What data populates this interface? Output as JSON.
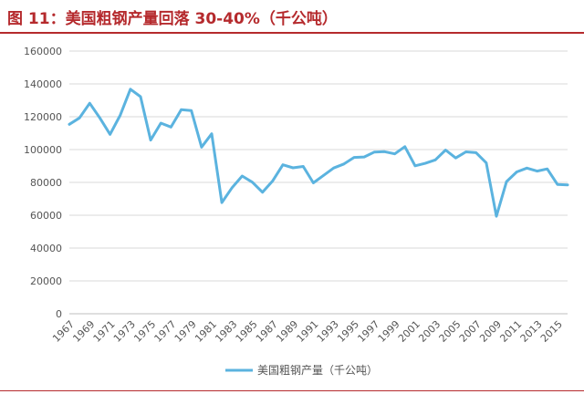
{
  "figure": {
    "title": "图 11：美国粗钢产量回落 30-40%（千公吨）"
  },
  "colors": {
    "line": "#5bb3df",
    "grid": "#d9d9d9",
    "title": "#b52a2d",
    "text": "#555555"
  },
  "chart_data": {
    "type": "line",
    "title": "",
    "xlabel": "",
    "ylabel": "",
    "ylim": [
      0,
      160000
    ],
    "yticks": [
      0,
      20000,
      40000,
      60000,
      80000,
      100000,
      120000,
      140000,
      160000
    ],
    "xtick_labels": [
      "1967",
      "1969",
      "1971",
      "1973",
      "1975",
      "1977",
      "1979",
      "1981",
      "1983",
      "1985",
      "1987",
      "1989",
      "1991",
      "1993",
      "1995",
      "1997",
      "1999",
      "2001",
      "2003",
      "2005",
      "2007",
      "2009",
      "2011",
      "2013",
      "2015"
    ],
    "grid": "horizontal",
    "legend": "bottom",
    "series": [
      {
        "name": "美国粗钢产量（千公吨）",
        "x": [
          1967,
          1968,
          1969,
          1970,
          1971,
          1972,
          1973,
          1974,
          1975,
          1976,
          1977,
          1978,
          1979,
          1980,
          1981,
          1982,
          1983,
          1984,
          1985,
          1986,
          1987,
          1988,
          1989,
          1990,
          1991,
          1992,
          1993,
          1994,
          1995,
          1996,
          1997,
          1998,
          1999,
          2000,
          2001,
          2002,
          2003,
          2004,
          2005,
          2006,
          2007,
          2008,
          2009,
          2010,
          2011,
          2012,
          2013,
          2014,
          2015,
          2016
        ],
        "values": [
          115400,
          119300,
          128200,
          119300,
          109300,
          120900,
          136800,
          132200,
          105800,
          116100,
          113700,
          124300,
          123700,
          101500,
          109600,
          67700,
          76800,
          83900,
          80100,
          74000,
          81000,
          90700,
          88900,
          89700,
          79700,
          84300,
          88800,
          91200,
          95200,
          95500,
          98500,
          98700,
          97400,
          101800,
          90100,
          91600,
          93700,
          99700,
          94900,
          98600,
          98100,
          91900,
          59400,
          80500,
          86400,
          88700,
          86900,
          88200,
          78800,
          78500
        ]
      }
    ]
  }
}
